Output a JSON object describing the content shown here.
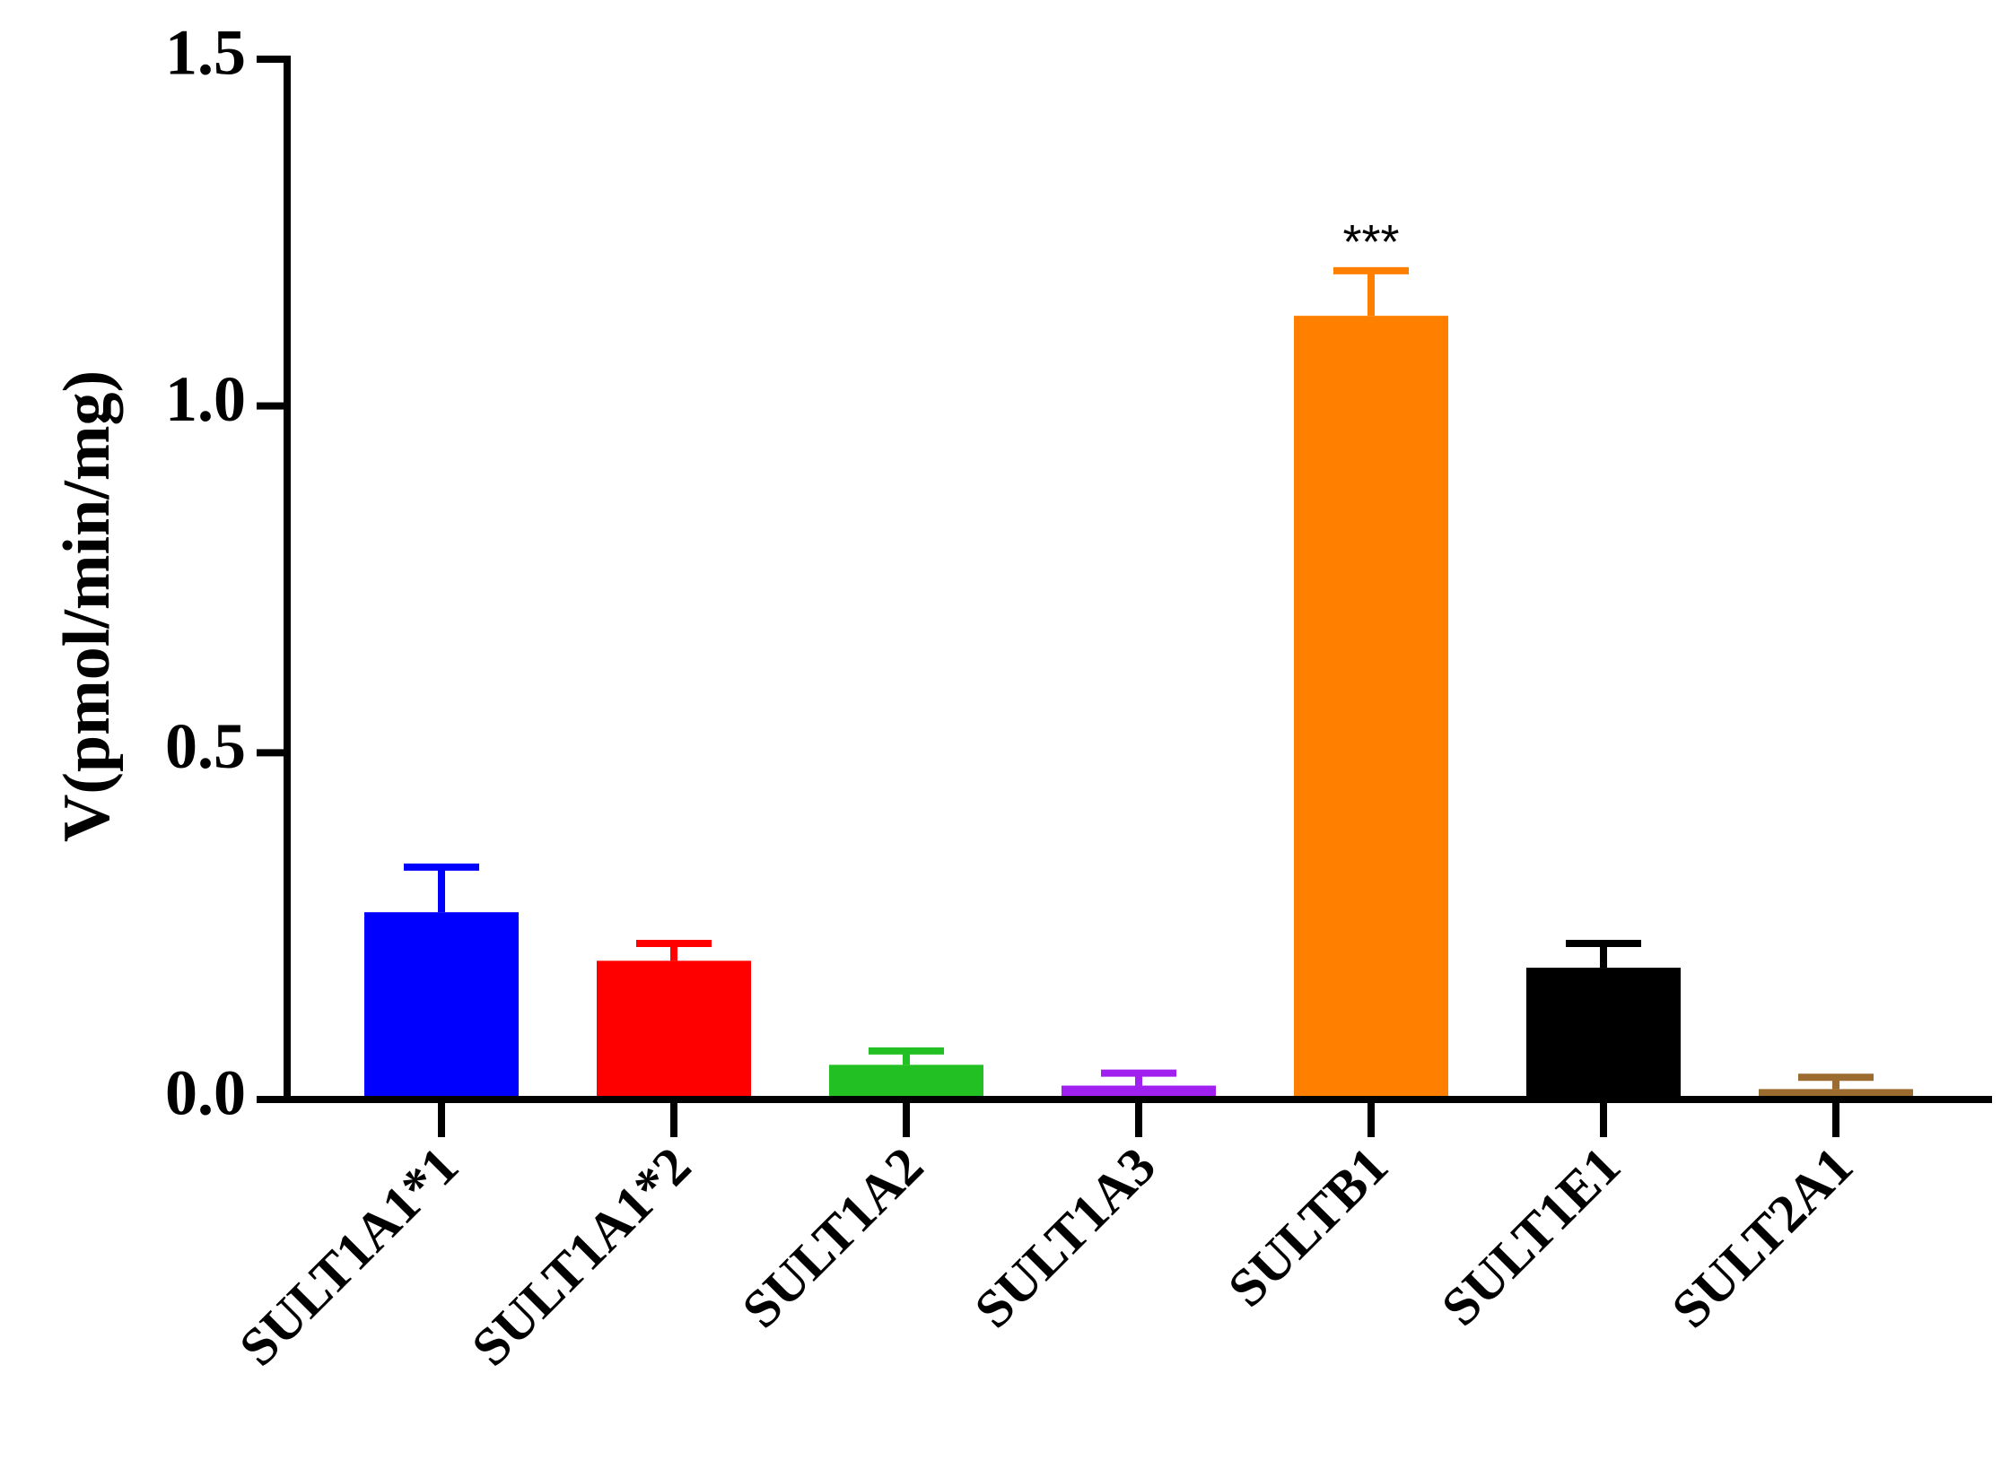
{
  "chart_data": {
    "type": "bar",
    "title": "",
    "xlabel": "",
    "ylabel": "V(pmol/min/mg)",
    "ylim": [
      0,
      1.5
    ],
    "yticks": [
      "0.0",
      "0.5",
      "1.0",
      "1.5"
    ],
    "grid": false,
    "categories": [
      "SULT1A1*1",
      "SULT1A1*2",
      "SULT1A2",
      "SULT1A3",
      "SULTB1",
      "SULT1E1",
      "SULT2A1"
    ],
    "values": [
      0.27,
      0.2,
      0.05,
      0.02,
      1.13,
      0.19,
      0.015
    ],
    "errors": [
      0.065,
      0.025,
      0.02,
      0.018,
      0.065,
      0.035,
      0.017
    ],
    "colors": [
      "#0000ff",
      "#ff0000",
      "#22c022",
      "#a020f0",
      "#ff8000",
      "#000000",
      "#9c6b30"
    ],
    "annotations": [
      {
        "category": "SULTB1",
        "text": "***"
      }
    ]
  }
}
